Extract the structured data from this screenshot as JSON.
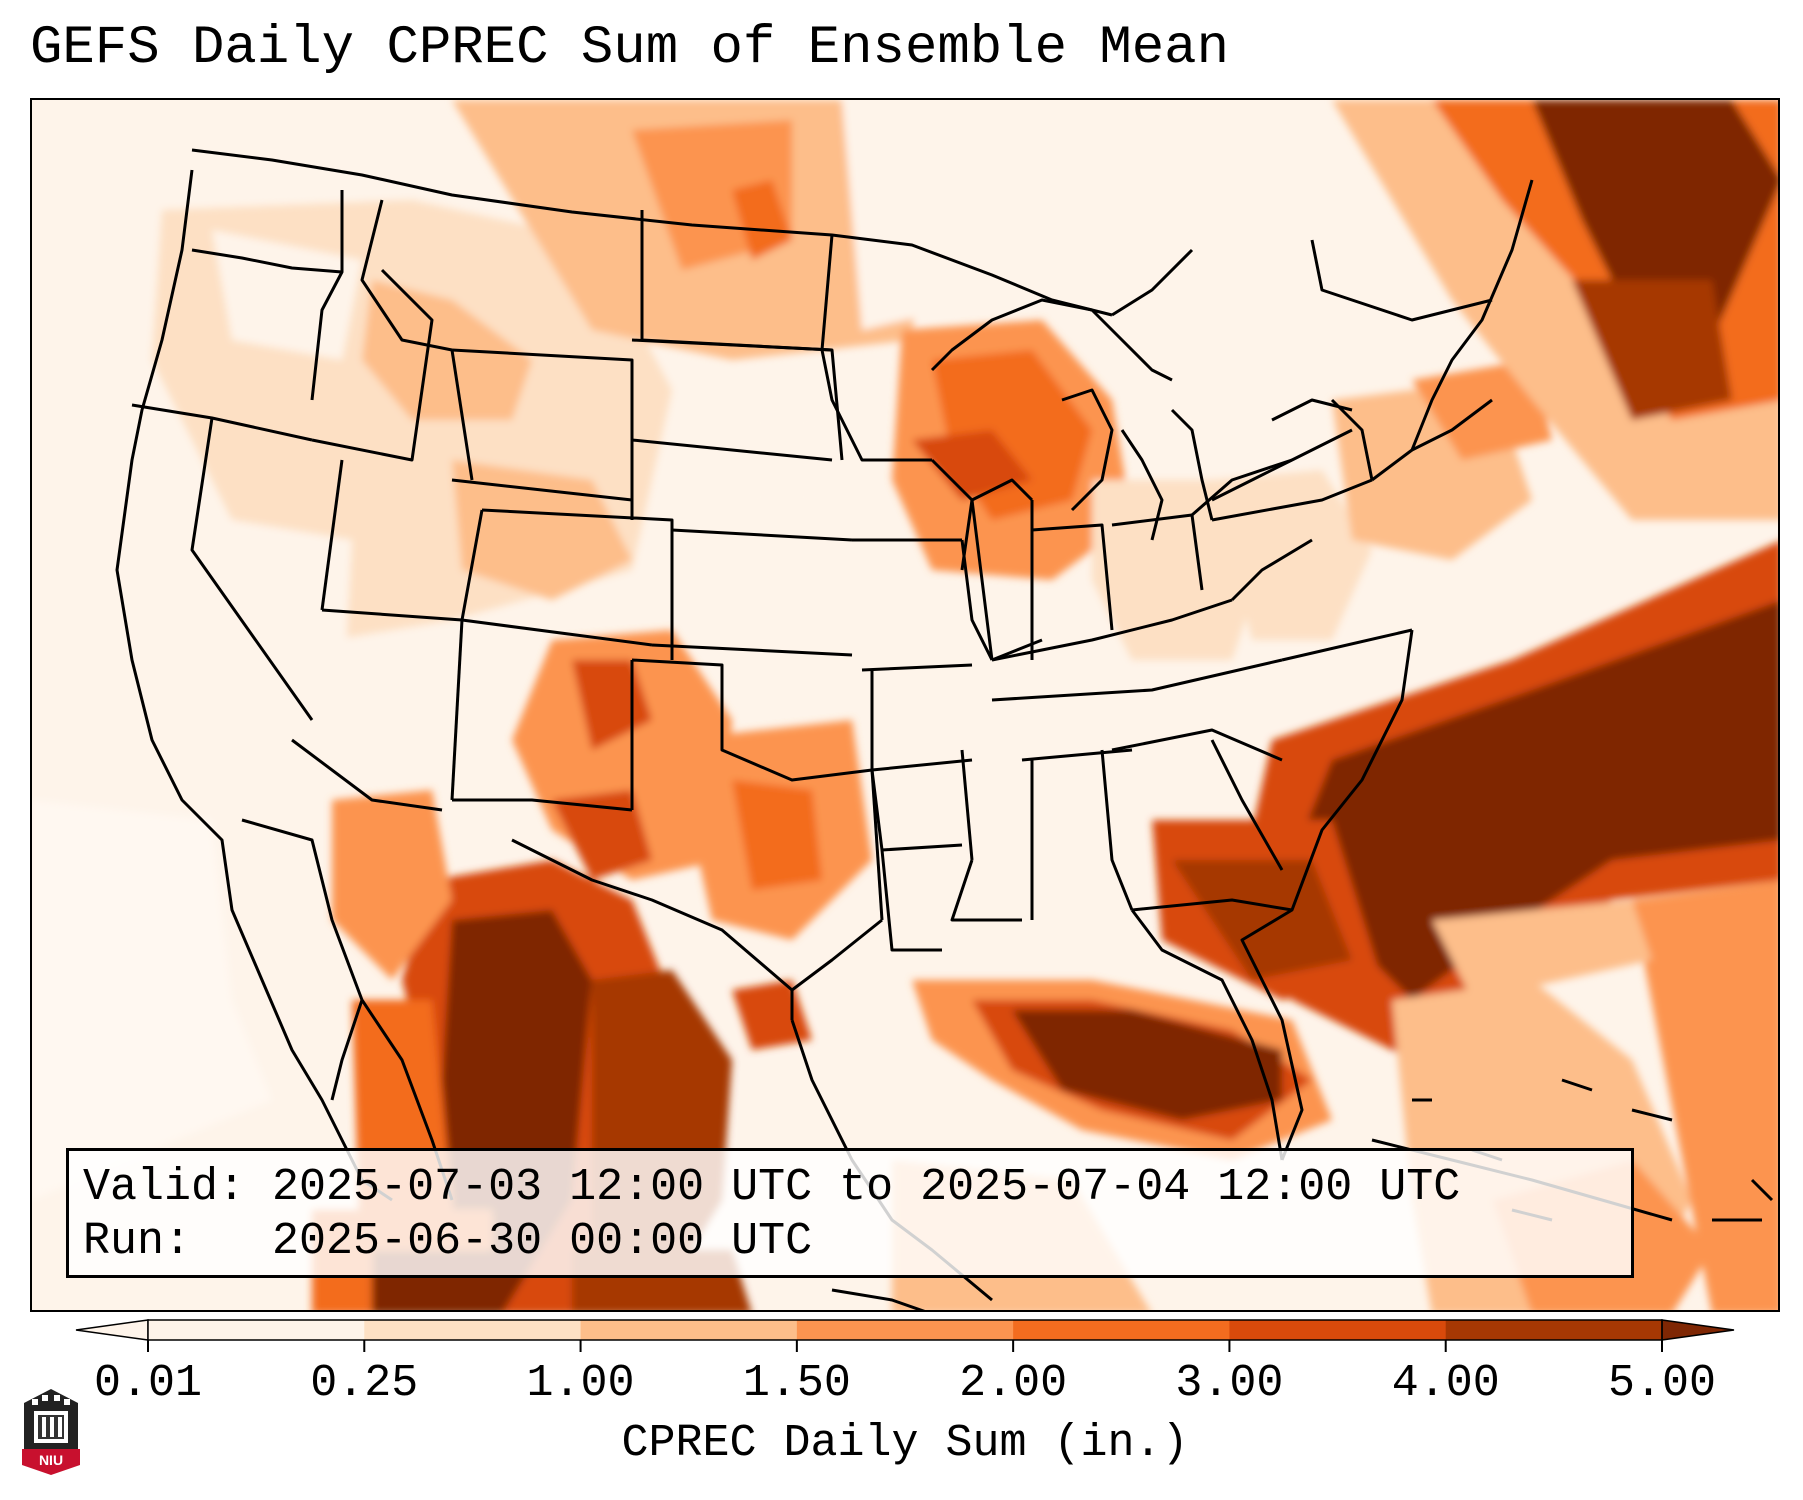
{
  "title": "GEFS Daily CPREC Sum of Ensemble Mean",
  "info": {
    "valid_label": "Valid:",
    "valid_value": "2025-07-03 12:00 UTC to 2025-07-04 12:00 UTC",
    "run_label": "Run:",
    "run_value": "2025-06-30 00:00 UTC"
  },
  "colorbar": {
    "label": "CPREC Daily Sum (in.)",
    "ticks": [
      "0.01",
      "0.25",
      "1.00",
      "1.50",
      "2.00",
      "3.00",
      "4.00",
      "5.00"
    ],
    "colors": [
      "#fef4ea",
      "#fde0c4",
      "#fdbe8a",
      "#fc9450",
      "#f36c1f",
      "#d84a0b",
      "#a63803",
      "#7f2704"
    ],
    "extend": "both"
  },
  "logo": {
    "text": "NIU",
    "icon": "university-tower-icon"
  },
  "palette": {
    "very_light": "#fef4ea",
    "light": "#fde0c4",
    "light_orange": "#fdbe8a",
    "orange": "#fc9450",
    "dark_orange": "#f36c1f",
    "burnt": "#d84a0b",
    "brown": "#a63803",
    "dark_brown": "#7f2704"
  }
}
